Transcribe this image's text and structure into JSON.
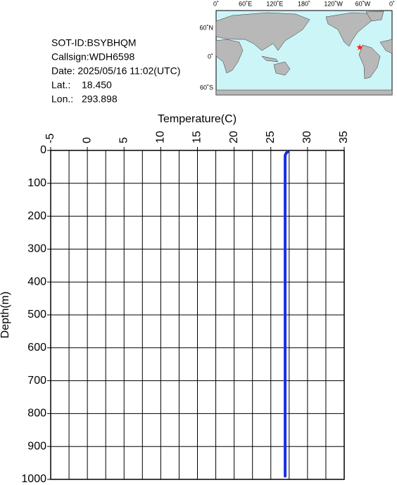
{
  "info": {
    "sot_id": "SOT-ID:BSYBHQM",
    "callsign": "Callsign:WDH6598",
    "date": "Date:  2025/05/16 11:02(UTC)",
    "lat_caption": "Lat.:",
    "lat": {
      "value": 18.45,
      "label": "18.450"
    },
    "lon_caption": "Lon.:",
    "lon": {
      "value": 293.898,
      "label": "293.898"
    }
  },
  "map": {
    "lon_labels": [
      "0˚",
      "60˚E",
      "120˚E",
      "180˚",
      "120˚W",
      "60˚W",
      "0˚"
    ],
    "lat_labels": [
      "60˚N",
      "0˚",
      "60˚S"
    ],
    "marker_color": "#ff2020"
  },
  "chart_data": {
    "type": "line",
    "x_label": "Temperature(C)",
    "y_label": "Depth(m)",
    "depth": [
      4,
      8,
      15,
      50,
      200,
      400,
      600,
      800,
      990
    ],
    "values": [
      27.3,
      27.1,
      26.95,
      26.95,
      26.95,
      26.95,
      26.95,
      26.95,
      26.95
    ],
    "color": "#1a2fe0",
    "xlim": [
      -5,
      35
    ],
    "xticks": [
      -5,
      0,
      5,
      10,
      15,
      20,
      25,
      30,
      35
    ],
    "xgrid": [
      -2.5,
      2.5,
      7.5,
      12.5,
      17.5,
      22.5,
      27.5,
      32.5
    ],
    "ylim": [
      0,
      1000
    ],
    "yticks": [
      0,
      100,
      200,
      300,
      400,
      500,
      600,
      700,
      800,
      900,
      1000
    ],
    "y_inverted": true,
    "grid": true
  }
}
